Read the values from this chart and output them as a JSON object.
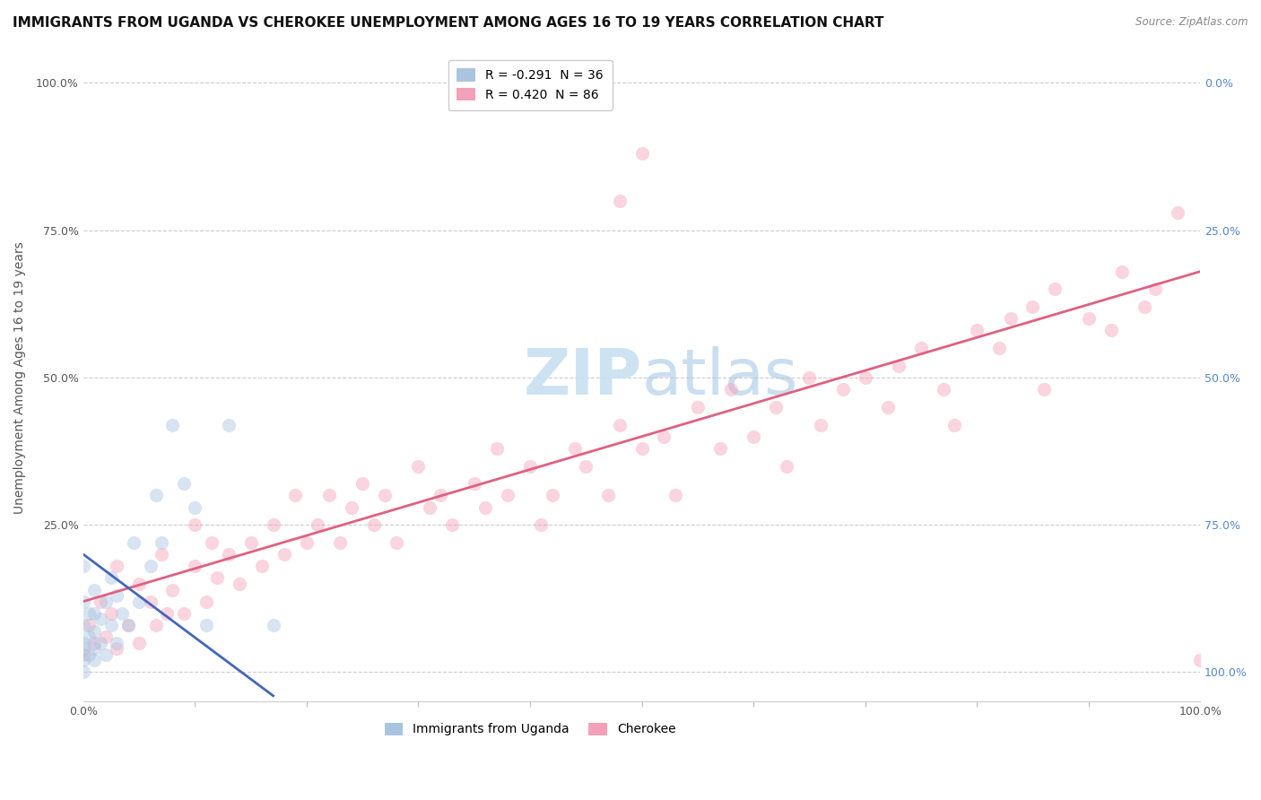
{
  "title": "IMMIGRANTS FROM UGANDA VS CHEROKEE UNEMPLOYMENT AMONG AGES 16 TO 19 YEARS CORRELATION CHART",
  "source": "Source: ZipAtlas.com",
  "ylabel": "Unemployment Among Ages 16 to 19 years",
  "xlim": [
    0.0,
    1.0
  ],
  "ylim": [
    -0.05,
    1.05
  ],
  "ytick_positions": [
    0.0,
    0.25,
    0.5,
    0.75,
    1.0
  ],
  "left_ytick_labels": [
    "",
    "25.0%",
    "50.0%",
    "75.0%",
    "100.0%"
  ],
  "right_ytick_labels": [
    "100.0%",
    "75.0%",
    "50.0%",
    "25.0%",
    "0.0%"
  ],
  "xtick_positions": [
    0.0,
    1.0
  ],
  "xtick_labels": [
    "0.0%",
    "100.0%"
  ],
  "watermark_zip": "ZIP",
  "watermark_atlas": "atlas",
  "legend_label_uganda": "R = -0.291  N = 36",
  "legend_label_cherokee": "R = 0.420  N = 86",
  "bottom_legend_uganda": "Immigrants from Uganda",
  "bottom_legend_cherokee": "Cherokee",
  "uganda_color": "#aac4e0",
  "cherokee_color": "#f4a0b8",
  "uganda_line_color": "#4466bb",
  "cherokee_line_color": "#e06080",
  "uganda_scatter_x": [
    0.0,
    0.0,
    0.0,
    0.0,
    0.0,
    0.0,
    0.0,
    0.005,
    0.005,
    0.005,
    0.01,
    0.01,
    0.01,
    0.01,
    0.01,
    0.015,
    0.015,
    0.02,
    0.02,
    0.025,
    0.025,
    0.03,
    0.03,
    0.035,
    0.04,
    0.045,
    0.05,
    0.06,
    0.065,
    0.07,
    0.08,
    0.09,
    0.1,
    0.11,
    0.13,
    0.17
  ],
  "uganda_scatter_y": [
    0.0,
    0.02,
    0.04,
    0.05,
    0.08,
    0.12,
    0.18,
    0.03,
    0.06,
    0.1,
    0.02,
    0.04,
    0.07,
    0.1,
    0.14,
    0.05,
    0.09,
    0.03,
    0.12,
    0.08,
    0.16,
    0.05,
    0.13,
    0.1,
    0.08,
    0.22,
    0.12,
    0.18,
    0.3,
    0.22,
    0.42,
    0.32,
    0.28,
    0.08,
    0.42,
    0.08
  ],
  "cherokee_scatter_x": [
    0.0,
    0.005,
    0.01,
    0.015,
    0.02,
    0.025,
    0.03,
    0.03,
    0.04,
    0.05,
    0.05,
    0.06,
    0.065,
    0.07,
    0.075,
    0.08,
    0.09,
    0.1,
    0.1,
    0.11,
    0.115,
    0.12,
    0.13,
    0.14,
    0.15,
    0.16,
    0.17,
    0.18,
    0.19,
    0.2,
    0.21,
    0.22,
    0.23,
    0.24,
    0.25,
    0.26,
    0.27,
    0.28,
    0.3,
    0.31,
    0.32,
    0.33,
    0.35,
    0.36,
    0.37,
    0.38,
    0.4,
    0.41,
    0.42,
    0.44,
    0.45,
    0.47,
    0.48,
    0.5,
    0.52,
    0.53,
    0.55,
    0.57,
    0.58,
    0.6,
    0.62,
    0.63,
    0.65,
    0.66,
    0.68,
    0.7,
    0.72,
    0.73,
    0.75,
    0.77,
    0.78,
    0.8,
    0.82,
    0.83,
    0.85,
    0.86,
    0.87,
    0.9,
    0.92,
    0.93,
    0.95,
    0.96,
    0.98,
    1.0,
    0.48,
    0.5
  ],
  "cherokee_scatter_y": [
    0.03,
    0.08,
    0.05,
    0.12,
    0.06,
    0.1,
    0.04,
    0.18,
    0.08,
    0.05,
    0.15,
    0.12,
    0.08,
    0.2,
    0.1,
    0.14,
    0.1,
    0.18,
    0.25,
    0.12,
    0.22,
    0.16,
    0.2,
    0.15,
    0.22,
    0.18,
    0.25,
    0.2,
    0.3,
    0.22,
    0.25,
    0.3,
    0.22,
    0.28,
    0.32,
    0.25,
    0.3,
    0.22,
    0.35,
    0.28,
    0.3,
    0.25,
    0.32,
    0.28,
    0.38,
    0.3,
    0.35,
    0.25,
    0.3,
    0.38,
    0.35,
    0.3,
    0.42,
    0.38,
    0.4,
    0.3,
    0.45,
    0.38,
    0.48,
    0.4,
    0.45,
    0.35,
    0.5,
    0.42,
    0.48,
    0.5,
    0.45,
    0.52,
    0.55,
    0.48,
    0.42,
    0.58,
    0.55,
    0.6,
    0.62,
    0.48,
    0.65,
    0.6,
    0.58,
    0.68,
    0.62,
    0.65,
    0.78,
    0.02,
    0.8,
    0.88
  ],
  "uganda_line_x": [
    0.0,
    0.17
  ],
  "uganda_line_y": [
    0.2,
    -0.04
  ],
  "cherokee_line_x": [
    0.0,
    1.0
  ],
  "cherokee_line_y": [
    0.12,
    0.68
  ],
  "background_color": "#ffffff",
  "grid_color": "#cccccc",
  "title_fontsize": 11,
  "axis_label_fontsize": 10,
  "tick_fontsize": 9,
  "scatter_size": 120,
  "scatter_alpha": 0.45,
  "right_tick_color": "#5588cc"
}
